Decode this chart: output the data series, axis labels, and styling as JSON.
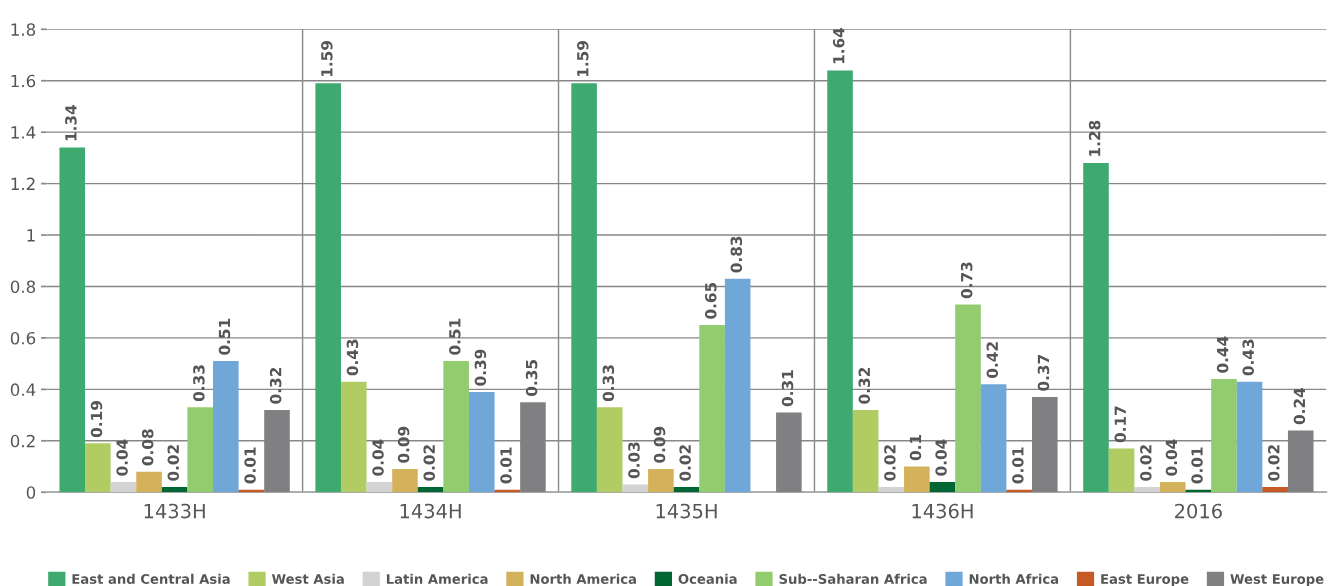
{
  "chart_data": {
    "type": "bar",
    "categories": [
      "1433H",
      "1434H",
      "1435H",
      "1436H",
      "2016"
    ],
    "series": [
      {
        "name": "East and Central Asia",
        "color": "#3faa6f",
        "values": [
          1.34,
          1.59,
          1.59,
          1.64,
          1.28
        ]
      },
      {
        "name": "West Asia",
        "color": "#b0cc63",
        "values": [
          0.19,
          0.43,
          0.33,
          0.32,
          0.17
        ]
      },
      {
        "name": "Latin America",
        "color": "#d3d3d3",
        "values": [
          0.04,
          0.04,
          0.03,
          0.02,
          0.02
        ]
      },
      {
        "name": "North America",
        "color": "#d4b25c",
        "values": [
          0.08,
          0.09,
          0.09,
          0.1,
          0.04
        ]
      },
      {
        "name": "Oceania",
        "color": "#006633",
        "values": [
          0.02,
          0.02,
          0.02,
          0.04,
          0.01
        ]
      },
      {
        "name": "Sub--Saharan Africa",
        "color": "#92cc6e",
        "values": [
          0.33,
          0.51,
          0.65,
          0.73,
          0.44
        ]
      },
      {
        "name": "North Africa",
        "color": "#6fa7d8",
        "values": [
          0.51,
          0.39,
          0.83,
          0.42,
          0.43
        ]
      },
      {
        "name": "East Europe",
        "color": "#c55a25",
        "values": [
          0.01,
          0.01,
          null,
          0.01,
          0.02
        ]
      },
      {
        "name": "West Europe",
        "color": "#808083",
        "values": [
          0.32,
          0.35,
          0.31,
          0.37,
          0.24
        ]
      }
    ],
    "ylim": [
      0,
      1.8
    ],
    "yticks": [
      0,
      0.2,
      0.4,
      0.6,
      0.8,
      1,
      1.2,
      1.4,
      1.6,
      1.8
    ],
    "grid": true,
    "legend": "bottom",
    "data_labels": true
  }
}
